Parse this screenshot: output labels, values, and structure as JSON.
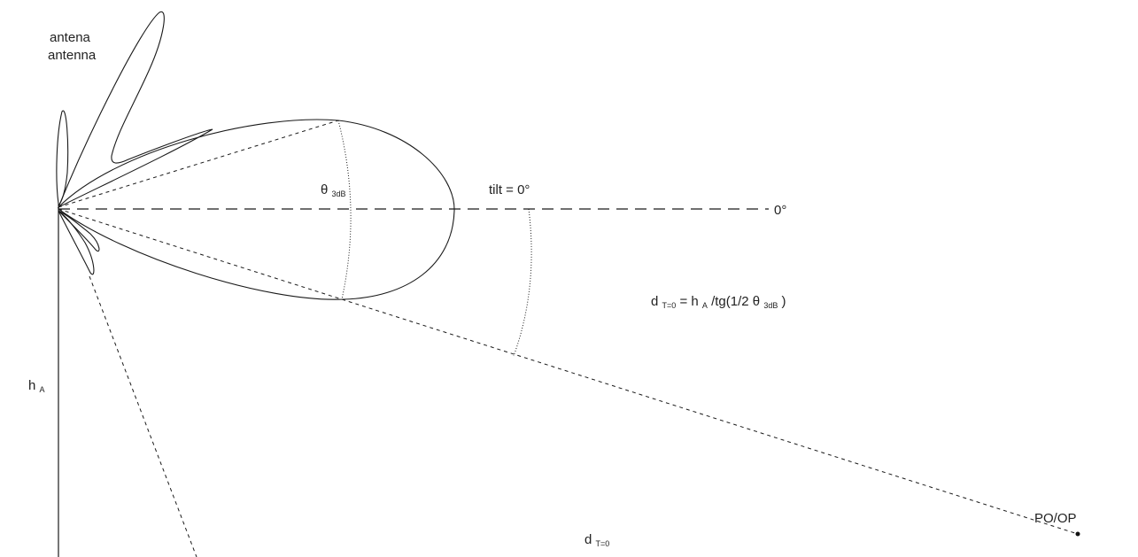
{
  "labels": {
    "antenna_line1": "antena",
    "antenna_line2": "antenna",
    "beamwidth_main": "θ",
    "beamwidth_sub": "3dB",
    "tilt": "tilt = 0°",
    "zero_degrees": "0°",
    "height_main": "h",
    "height_sub": "A",
    "formula": {
      "d": "d",
      "d_sub": "T=0",
      "eq_h": " = h",
      "h_sub": "A",
      "tg": "/tg(1/2 θ",
      "theta_sub": "3dB",
      "close": ")"
    },
    "distance_main": "d",
    "distance_sub": "T=0",
    "point": "PO/OP"
  },
  "colors": {
    "stroke": "#1a1a1a",
    "text": "#222222",
    "background": "#ffffff"
  }
}
